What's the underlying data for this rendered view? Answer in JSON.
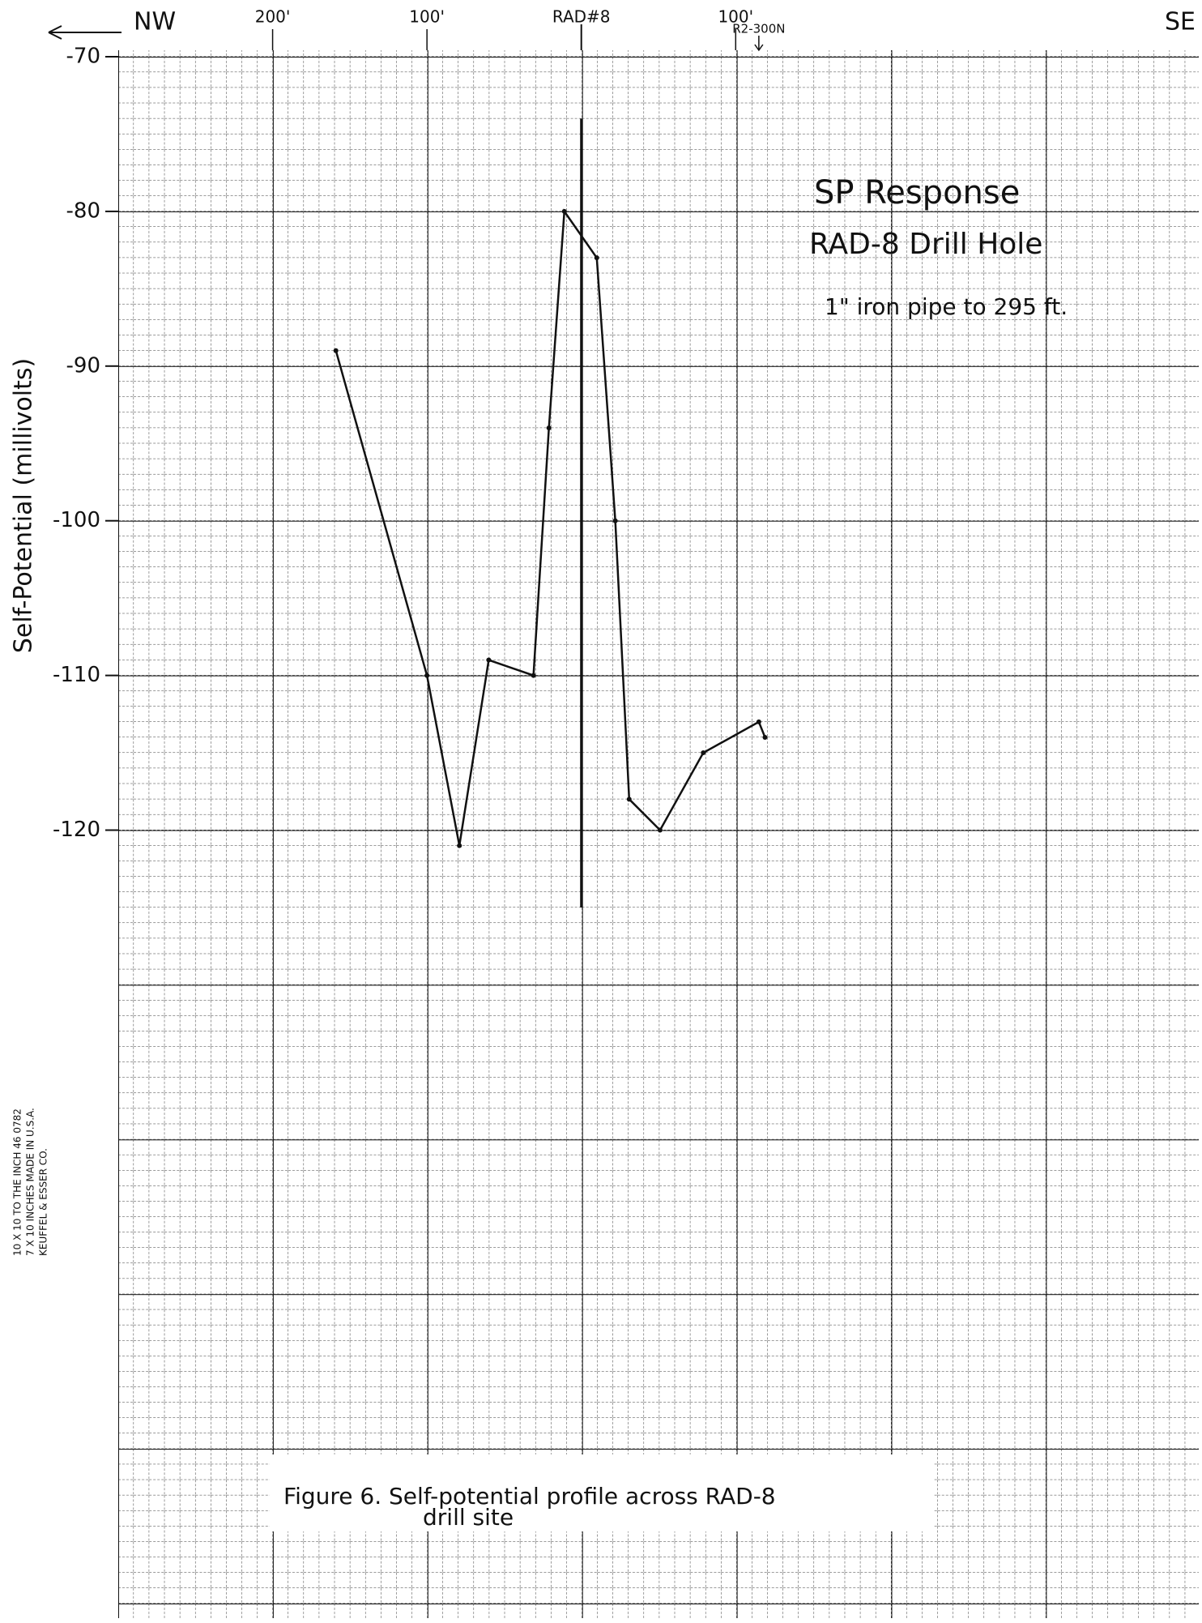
{
  "chart_data": {
    "type": "line",
    "title": "SP Response",
    "subtitle": "RAD-8 Drill Hole",
    "annotation": "1\" iron pipe to 295 ft.",
    "y_label": "Self-Potential (millivolts)",
    "direction_left": "NW",
    "direction_right": "SE",
    "station_label": "R2-300N",
    "station_x": 115,
    "caption": [
      "Figure 6. Self-potential profile across RAD-8",
      "drill site"
    ],
    "paper_label": [
      "10 X 10 TO THE INCH   46 0782",
      "7 X 10 INCHES   MADE IN U.S.A.",
      "KEUFFEL & ESSER CO."
    ],
    "x": [
      -159,
      -100,
      -79,
      -60,
      -31,
      -21,
      -11,
      10,
      22,
      31,
      51,
      79,
      115,
      119
    ],
    "values": [
      -89,
      -110,
      -121,
      -109,
      -110,
      -94,
      -80,
      -83,
      -100,
      -118,
      -120,
      -115,
      -113,
      -114
    ],
    "color": "#111111",
    "drill_hole": {
      "x": 0,
      "y": [
        -74,
        -125
      ]
    },
    "xlim": [
      -300,
      400
    ],
    "ylim": [
      -170,
      -70
    ],
    "xticks": [
      {
        "value": -200,
        "label": "200'"
      },
      {
        "value": -100,
        "label": "100'"
      },
      {
        "value": 0,
        "label": "RAD#8"
      },
      {
        "value": 100,
        "label": "100'"
      }
    ],
    "yticks": [
      -70,
      -80,
      -90,
      -100,
      -110,
      -120
    ]
  }
}
